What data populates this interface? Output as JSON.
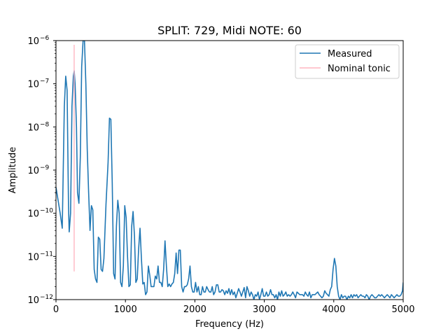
{
  "chart_data": {
    "type": "line",
    "title": "SPLIT: 729, Midi NOTE: 60",
    "xlabel": "Frequency (Hz)",
    "ylabel": "Amplitude",
    "xlim": [
      0,
      5000
    ],
    "ylim": [
      1e-12,
      1e-06
    ],
    "yscale": "log",
    "grid": false,
    "legend_placement": "top-right",
    "x_ticks": [
      0,
      1000,
      2000,
      3000,
      4000,
      5000
    ],
    "x_tick_labels": [
      "0",
      "1000",
      "2000",
      "3000",
      "4000",
      "5000"
    ],
    "y_ticks": [
      1e-12,
      1e-11,
      1e-10,
      1e-09,
      1e-08,
      1e-07,
      1e-06
    ],
    "y_tick_labels": [
      {
        "base": "10",
        "exp": "−12"
      },
      {
        "base": "10",
        "exp": "−11"
      },
      {
        "base": "10",
        "exp": "−10"
      },
      {
        "base": "10",
        "exp": "−9"
      },
      {
        "base": "10",
        "exp": "−8"
      },
      {
        "base": "10",
        "exp": "−7"
      },
      {
        "base": "10",
        "exp": "−6"
      }
    ],
    "series": [
      {
        "name": "Measured",
        "color": "#1f77b4",
        "points": [
          [
            0,
            4e-10
          ],
          [
            30,
            2e-10
          ],
          [
            60,
            1e-10
          ],
          [
            90,
            4.5e-11
          ],
          [
            120,
            3e-08
          ],
          [
            140,
            1.5e-07
          ],
          [
            160,
            7e-08
          ],
          [
            180,
            1.5e-10
          ],
          [
            190,
            3.7e-11
          ],
          [
            210,
            1e-10
          ],
          [
            230,
            3e-08
          ],
          [
            250,
            1.5e-07
          ],
          [
            262,
            2e-07
          ],
          [
            275,
            1e-07
          ],
          [
            295,
            1e-08
          ],
          [
            310,
            3e-10
          ],
          [
            330,
            1.7e-10
          ],
          [
            350,
            2e-09
          ],
          [
            370,
            2.5e-07
          ],
          [
            390,
            1e-06
          ],
          [
            410,
            1e-06
          ],
          [
            430,
            1e-07
          ],
          [
            450,
            3e-09
          ],
          [
            470,
            3e-10
          ],
          [
            490,
            4e-11
          ],
          [
            510,
            1.5e-10
          ],
          [
            530,
            1.2e-10
          ],
          [
            550,
            5e-12
          ],
          [
            570,
            3e-12
          ],
          [
            590,
            2.5e-12
          ],
          [
            610,
            2.8e-11
          ],
          [
            630,
            2.5e-11
          ],
          [
            650,
            5e-12
          ],
          [
            670,
            4.5e-12
          ],
          [
            690,
            9e-12
          ],
          [
            720,
            1.6e-10
          ],
          [
            750,
            1.5e-09
          ],
          [
            770,
            1.6e-08
          ],
          [
            790,
            1.5e-08
          ],
          [
            810,
            5e-10
          ],
          [
            830,
            4e-12
          ],
          [
            850,
            3e-12
          ],
          [
            870,
            5e-11
          ],
          [
            890,
            2e-10
          ],
          [
            910,
            1e-10
          ],
          [
            930,
            2.5e-12
          ],
          [
            950,
            2e-12
          ],
          [
            970,
            6e-12
          ],
          [
            990,
            1.5e-10
          ],
          [
            1010,
            8e-11
          ],
          [
            1030,
            1e-11
          ],
          [
            1050,
            2e-12
          ],
          [
            1070,
            2.2e-12
          ],
          [
            1090,
            5e-11
          ],
          [
            1110,
            1.1e-10
          ],
          [
            1130,
            3e-11
          ],
          [
            1150,
            2.5e-12
          ],
          [
            1170,
            3e-12
          ],
          [
            1190,
            1.5e-11
          ],
          [
            1210,
            4.5e-11
          ],
          [
            1230,
            9e-12
          ],
          [
            1250,
            2.3e-12
          ],
          [
            1270,
            2.5e-12
          ],
          [
            1290,
            1.3e-12
          ],
          [
            1310,
            1.5e-12
          ],
          [
            1330,
            6e-12
          ],
          [
            1350,
            3.7e-12
          ],
          [
            1370,
            2e-12
          ],
          [
            1390,
            2e-12
          ],
          [
            1410,
            2e-12
          ],
          [
            1430,
            3.5e-12
          ],
          [
            1450,
            3e-12
          ],
          [
            1470,
            6e-12
          ],
          [
            1490,
            2.5e-12
          ],
          [
            1510,
            2.5e-12
          ],
          [
            1530,
            2e-12
          ],
          [
            1550,
            5e-12
          ],
          [
            1570,
            2.3e-11
          ],
          [
            1590,
            6e-12
          ],
          [
            1610,
            2e-12
          ],
          [
            1630,
            2.3e-12
          ],
          [
            1650,
            2e-12
          ],
          [
            1670,
            2.3e-12
          ],
          [
            1690,
            2.5e-12
          ],
          [
            1710,
            4e-12
          ],
          [
            1730,
            1.2e-11
          ],
          [
            1750,
            4e-12
          ],
          [
            1770,
            1.4e-11
          ],
          [
            1790,
            1.4e-11
          ],
          [
            1810,
            2e-12
          ],
          [
            1830,
            1.5e-12
          ],
          [
            1850,
            2e-12
          ],
          [
            1870,
            2e-12
          ],
          [
            1890,
            2.2e-12
          ],
          [
            1910,
            3e-12
          ],
          [
            1930,
            6e-12
          ],
          [
            1950,
            2e-12
          ],
          [
            1970,
            1.5e-12
          ],
          [
            1990,
            1.5e-12
          ],
          [
            2010,
            2.5e-12
          ],
          [
            2030,
            1.5e-12
          ],
          [
            2050,
            2e-12
          ],
          [
            2070,
            1.3e-12
          ],
          [
            2090,
            1.3e-12
          ],
          [
            2110,
            2e-12
          ],
          [
            2130,
            1.5e-12
          ],
          [
            2150,
            1.5e-12
          ],
          [
            2170,
            2e-12
          ],
          [
            2190,
            1.7e-12
          ],
          [
            2210,
            1.5e-12
          ],
          [
            2230,
            1.5e-12
          ],
          [
            2250,
            2e-12
          ],
          [
            2270,
            1.3e-12
          ],
          [
            2290,
            1.5e-12
          ],
          [
            2310,
            2.2e-12
          ],
          [
            2330,
            2.2e-12
          ],
          [
            2350,
            1.5e-12
          ],
          [
            2370,
            1.5e-12
          ],
          [
            2390,
            1.7e-12
          ],
          [
            2410,
            1.6e-12
          ],
          [
            2430,
            1.3e-12
          ],
          [
            2450,
            1.6e-12
          ],
          [
            2470,
            1.4e-12
          ],
          [
            2490,
            1.8e-12
          ],
          [
            2510,
            1.3e-12
          ],
          [
            2530,
            1.7e-12
          ],
          [
            2550,
            1.3e-12
          ],
          [
            2570,
            1.5e-12
          ],
          [
            2590,
            1.1e-12
          ],
          [
            2610,
            1.4e-12
          ],
          [
            2630,
            1.8e-12
          ],
          [
            2650,
            1.5e-12
          ],
          [
            2670,
            1.2e-12
          ],
          [
            2690,
            1.5e-12
          ],
          [
            2710,
            1.9e-12
          ],
          [
            2730,
            1.1e-12
          ],
          [
            2750,
            2e-12
          ],
          [
            2770,
            1.6e-12
          ],
          [
            2790,
            1.2e-12
          ],
          [
            2810,
            1.5e-12
          ],
          [
            2830,
            1.3e-12
          ],
          [
            2850,
            1e-12
          ],
          [
            2870,
            1.3e-12
          ],
          [
            2890,
            1.2e-12
          ],
          [
            2910,
            1.5e-12
          ],
          [
            2930,
            1e-12
          ],
          [
            2950,
            1.3e-12
          ],
          [
            2970,
            1.8e-12
          ],
          [
            2990,
            1.2e-12
          ],
          [
            3010,
            1.2e-12
          ],
          [
            3030,
            1.5e-12
          ],
          [
            3050,
            1.2e-12
          ],
          [
            3070,
            1.3e-12
          ],
          [
            3090,
            1.7e-12
          ],
          [
            3110,
            1.3e-12
          ],
          [
            3130,
            1.3e-12
          ],
          [
            3150,
            1.1e-12
          ],
          [
            3170,
            1.3e-12
          ],
          [
            3190,
            1e-12
          ],
          [
            3210,
            1.5e-12
          ],
          [
            3230,
            1.2e-12
          ],
          [
            3250,
            1.6e-12
          ],
          [
            3270,
            1.2e-12
          ],
          [
            3290,
            1.3e-12
          ],
          [
            3310,
            1.5e-12
          ],
          [
            3330,
            1.2e-12
          ],
          [
            3350,
            1.3e-12
          ],
          [
            3370,
            1.2e-12
          ],
          [
            3390,
            1.3e-12
          ],
          [
            3410,
            1.5e-12
          ],
          [
            3430,
            1.3e-12
          ],
          [
            3450,
            1.1e-12
          ],
          [
            3470,
            1.5e-12
          ],
          [
            3490,
            1.4e-12
          ],
          [
            3510,
            1.3e-12
          ],
          [
            3530,
            1.3e-12
          ],
          [
            3550,
            1.3e-12
          ],
          [
            3570,
            1.2e-12
          ],
          [
            3590,
            1.5e-12
          ],
          [
            3610,
            1.3e-12
          ],
          [
            3630,
            1.2e-12
          ],
          [
            3650,
            1.5e-12
          ],
          [
            3670,
            1.1e-12
          ],
          [
            3690,
            1.3e-12
          ],
          [
            3710,
            1.3e-12
          ],
          [
            3730,
            1.3e-12
          ],
          [
            3750,
            1.4e-12
          ],
          [
            3770,
            1.5e-12
          ],
          [
            3790,
            1.3e-12
          ],
          [
            3810,
            1.2e-12
          ],
          [
            3830,
            1.1e-12
          ],
          [
            3850,
            1.2e-12
          ],
          [
            3870,
            1.6e-12
          ],
          [
            3890,
            1.4e-12
          ],
          [
            3910,
            1.3e-12
          ],
          [
            3930,
            1.2e-12
          ],
          [
            3950,
            1.7e-12
          ],
          [
            3970,
            2e-12
          ],
          [
            3990,
            5e-12
          ],
          [
            4010,
            9e-12
          ],
          [
            4030,
            6e-12
          ],
          [
            4050,
            2e-12
          ],
          [
            4070,
            1.2e-12
          ],
          [
            4090,
            1e-12
          ],
          [
            4110,
            1.3e-12
          ],
          [
            4130,
            1.1e-12
          ],
          [
            4150,
            1.2e-12
          ],
          [
            4170,
            1.2e-12
          ],
          [
            4190,
            1e-12
          ],
          [
            4210,
            1.2e-12
          ],
          [
            4230,
            1.1e-12
          ],
          [
            4250,
            1.3e-12
          ],
          [
            4270,
            1.1e-12
          ],
          [
            4290,
            1.3e-12
          ],
          [
            4310,
            1.2e-12
          ],
          [
            4330,
            1.3e-12
          ],
          [
            4350,
            1.1e-12
          ],
          [
            4370,
            1.2e-12
          ],
          [
            4390,
            1.3e-12
          ],
          [
            4410,
            1.2e-12
          ],
          [
            4430,
            1.2e-12
          ],
          [
            4450,
            1.1e-12
          ],
          [
            4470,
            1.3e-12
          ],
          [
            4490,
            1.2e-12
          ],
          [
            4510,
            1e-12
          ],
          [
            4530,
            1.2e-12
          ],
          [
            4550,
            1.3e-12
          ],
          [
            4570,
            1.2e-12
          ],
          [
            4590,
            1.1e-12
          ],
          [
            4610,
            1.1e-12
          ],
          [
            4630,
            1.2e-12
          ],
          [
            4650,
            1.3e-12
          ],
          [
            4670,
            1.2e-12
          ],
          [
            4690,
            1.3e-12
          ],
          [
            4710,
            1.2e-12
          ],
          [
            4730,
            1.1e-12
          ],
          [
            4750,
            1.2e-12
          ],
          [
            4770,
            1.3e-12
          ],
          [
            4790,
            1.2e-12
          ],
          [
            4810,
            1.1e-12
          ],
          [
            4830,
            1.3e-12
          ],
          [
            4850,
            1.2e-12
          ],
          [
            4870,
            1.1e-12
          ],
          [
            4890,
            1.2e-12
          ],
          [
            4910,
            1.3e-12
          ],
          [
            4930,
            1.2e-12
          ],
          [
            4950,
            1.2e-12
          ],
          [
            4970,
            1.3e-12
          ],
          [
            4990,
            1.6e-12
          ],
          [
            5000,
            2.5e-12
          ]
        ]
      },
      {
        "name": "Nominal tonic",
        "color": "#ffb6c1",
        "points": [
          [
            261.6,
            4.5e-12
          ],
          [
            261.6,
            8e-07
          ]
        ]
      }
    ]
  }
}
